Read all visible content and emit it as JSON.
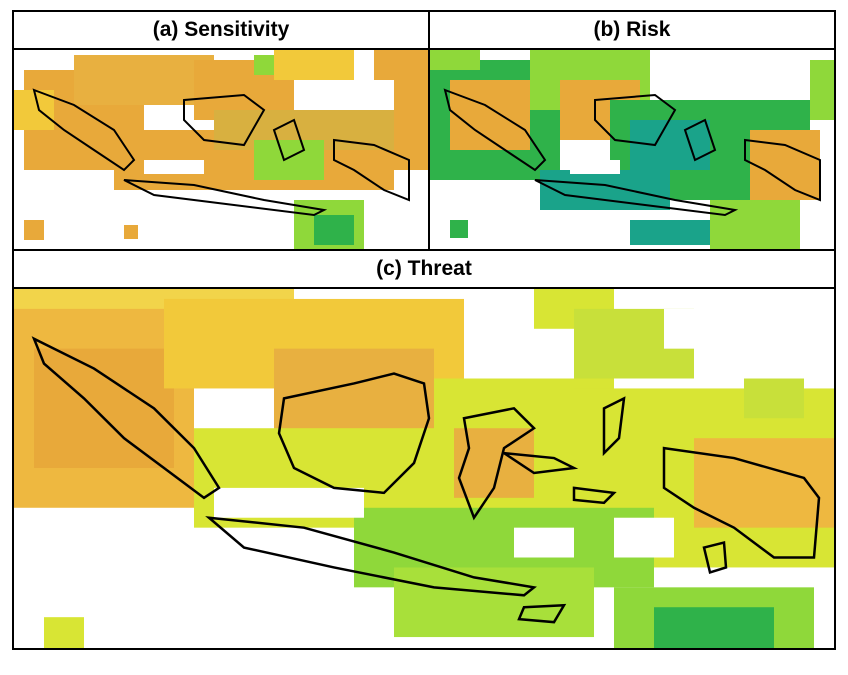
{
  "panels": {
    "sensitivity": {
      "title": "(a) Sensitivity"
    },
    "risk": {
      "title": "(b) Risk"
    },
    "threat": {
      "title": "(c) Threat"
    }
  },
  "colors": {
    "coastline": "#000000",
    "high": "#e8a93a",
    "medium": "#f2c93a",
    "low": "#d8e534",
    "lower": "#8fd83a",
    "lowest": "#2fb24a",
    "risk_low": "#1aa38a",
    "background": "#ffffff"
  }
}
